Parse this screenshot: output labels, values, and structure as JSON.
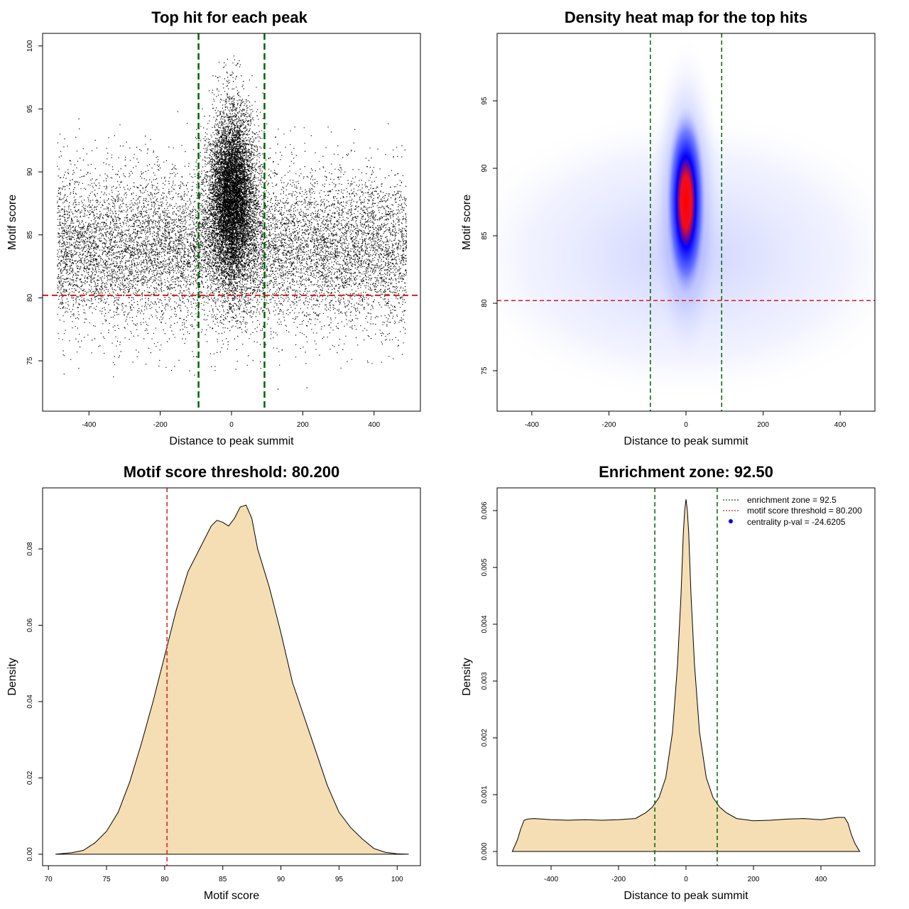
{
  "colors": {
    "points": "#000000",
    "enrichment_line": "#006400",
    "threshold_line": "#d7191c",
    "density_fill": "#f5deb3",
    "heat_low": "#ffffff",
    "heat_mid": "#0000ff",
    "heat_high": "#ff0000",
    "centrality_marker": "#0000ff"
  },
  "chart_data": [
    {
      "type": "scatter",
      "title": "Top hit for each peak",
      "xlabel": "Distance to peak summit",
      "ylabel": "Motif score",
      "xlim": [
        -530,
        530
      ],
      "ylim": [
        71,
        101
      ],
      "xticks": [
        -400,
        -200,
        0,
        200,
        400
      ],
      "yticks": [
        75,
        80,
        85,
        90,
        95,
        100
      ],
      "xtick_labels": [
        "-400",
        "-200",
        "0",
        "200",
        "400"
      ],
      "ytick_labels": [
        "75",
        "80",
        "85",
        "90",
        "95",
        "100"
      ],
      "x_range_points": [
        -490,
        490
      ],
      "background_score_center": 84,
      "central_score_center": 88,
      "vlines": [
        -92.5,
        92.5
      ],
      "hline": 80.2,
      "grid": false
    },
    {
      "type": "heatmap",
      "title": "Density heat map for the top hits",
      "xlabel": "Distance to peak summit",
      "ylabel": "Motif score",
      "xlim": [
        -490,
        490
      ],
      "ylim": [
        72,
        100
      ],
      "xticks": [
        -400,
        -200,
        0,
        200,
        400
      ],
      "yticks": [
        75,
        80,
        85,
        90,
        95
      ],
      "xtick_labels": [
        "-400",
        "-200",
        "0",
        "200",
        "400"
      ],
      "ytick_labels": [
        "75",
        "80",
        "85",
        "90",
        "95"
      ],
      "peak": [
        0,
        87.5
      ],
      "vlines": [
        -92.5,
        92.5
      ],
      "hline": 80.2,
      "grid": false
    },
    {
      "type": "area",
      "title": "Motif score threshold: 80.200",
      "xlabel": "Motif score",
      "ylabel": "Density",
      "xlim": [
        69.5,
        102
      ],
      "ylim": [
        -0.003,
        0.096
      ],
      "xticks": [
        70,
        75,
        80,
        85,
        90,
        95,
        100
      ],
      "yticks": [
        0.0,
        0.02,
        0.04,
        0.06,
        0.08
      ],
      "xtick_labels": [
        "70",
        "75",
        "80",
        "85",
        "90",
        "95",
        "100"
      ],
      "ytick_labels": [
        "0.00",
        "0.02",
        "0.04",
        "0.06",
        "0.08"
      ],
      "x": [
        70.6,
        72,
        73,
        74,
        75,
        76,
        77,
        78,
        79,
        80,
        81,
        82,
        83,
        84,
        84.5,
        85,
        85.5,
        86,
        86.5,
        87,
        87.5,
        88,
        89,
        90,
        91,
        92,
        93,
        94,
        95,
        96,
        97,
        98,
        99,
        100,
        101
      ],
      "y": [
        0.0,
        0.0004,
        0.001,
        0.003,
        0.006,
        0.011,
        0.019,
        0.029,
        0.04,
        0.052,
        0.064,
        0.074,
        0.08,
        0.086,
        0.0875,
        0.087,
        0.086,
        0.088,
        0.091,
        0.0915,
        0.088,
        0.08,
        0.07,
        0.058,
        0.045,
        0.036,
        0.027,
        0.018,
        0.011,
        0.007,
        0.004,
        0.0015,
        0.0005,
        0.0001,
        0.0
      ],
      "vline": 80.2,
      "grid": false
    },
    {
      "type": "area",
      "title": "Enrichment zone: 92.50",
      "xlabel": "Distance to peak summit",
      "ylabel": "Density",
      "xlim": [
        -560,
        560
      ],
      "ylim": [
        -0.00025,
        0.0064
      ],
      "xticks": [
        -400,
        -200,
        0,
        200,
        400
      ],
      "yticks": [
        0.0,
        0.001,
        0.002,
        0.003,
        0.004,
        0.005,
        0.006
      ],
      "xtick_labels": [
        "-400",
        "-200",
        "0",
        "200",
        "400"
      ],
      "ytick_labels": [
        "0.000",
        "0.001",
        "0.002",
        "0.003",
        "0.004",
        "0.005",
        "0.006"
      ],
      "x": [
        -515,
        -500,
        -490,
        -480,
        -470,
        -450,
        -400,
        -350,
        -300,
        -250,
        -200,
        -150,
        -120,
        -100,
        -80,
        -60,
        -40,
        -25,
        -15,
        -8,
        -4,
        0,
        4,
        8,
        15,
        25,
        40,
        60,
        80,
        100,
        120,
        150,
        200,
        250,
        300,
        350,
        400,
        450,
        470,
        480,
        490,
        500,
        515
      ],
      "y": [
        0.0,
        0.0002,
        0.0004,
        0.00055,
        0.00057,
        0.00058,
        0.00056,
        0.00055,
        0.00056,
        0.00055,
        0.00056,
        0.00058,
        0.00068,
        0.00078,
        0.00095,
        0.0013,
        0.0021,
        0.0033,
        0.0045,
        0.0056,
        0.006,
        0.0062,
        0.006,
        0.0056,
        0.0045,
        0.0033,
        0.0021,
        0.0013,
        0.00095,
        0.00078,
        0.00068,
        0.00058,
        0.00054,
        0.00055,
        0.00057,
        0.00058,
        0.00056,
        0.0006,
        0.0006,
        0.0005,
        0.0003,
        0.00015,
        0.0
      ],
      "vlines": [
        -92.5,
        92.5
      ],
      "grid": false,
      "legend_position": "top-right",
      "legend": [
        {
          "label": "enrichment zone = 92.5",
          "style": "dotted",
          "color": "#006400"
        },
        {
          "label": "motif score threshold = 80.200",
          "style": "dotted",
          "color": "#d7191c"
        },
        {
          "label": "centrality p-val = -24.6205",
          "style": "point",
          "color": "#0000ff"
        }
      ]
    }
  ]
}
